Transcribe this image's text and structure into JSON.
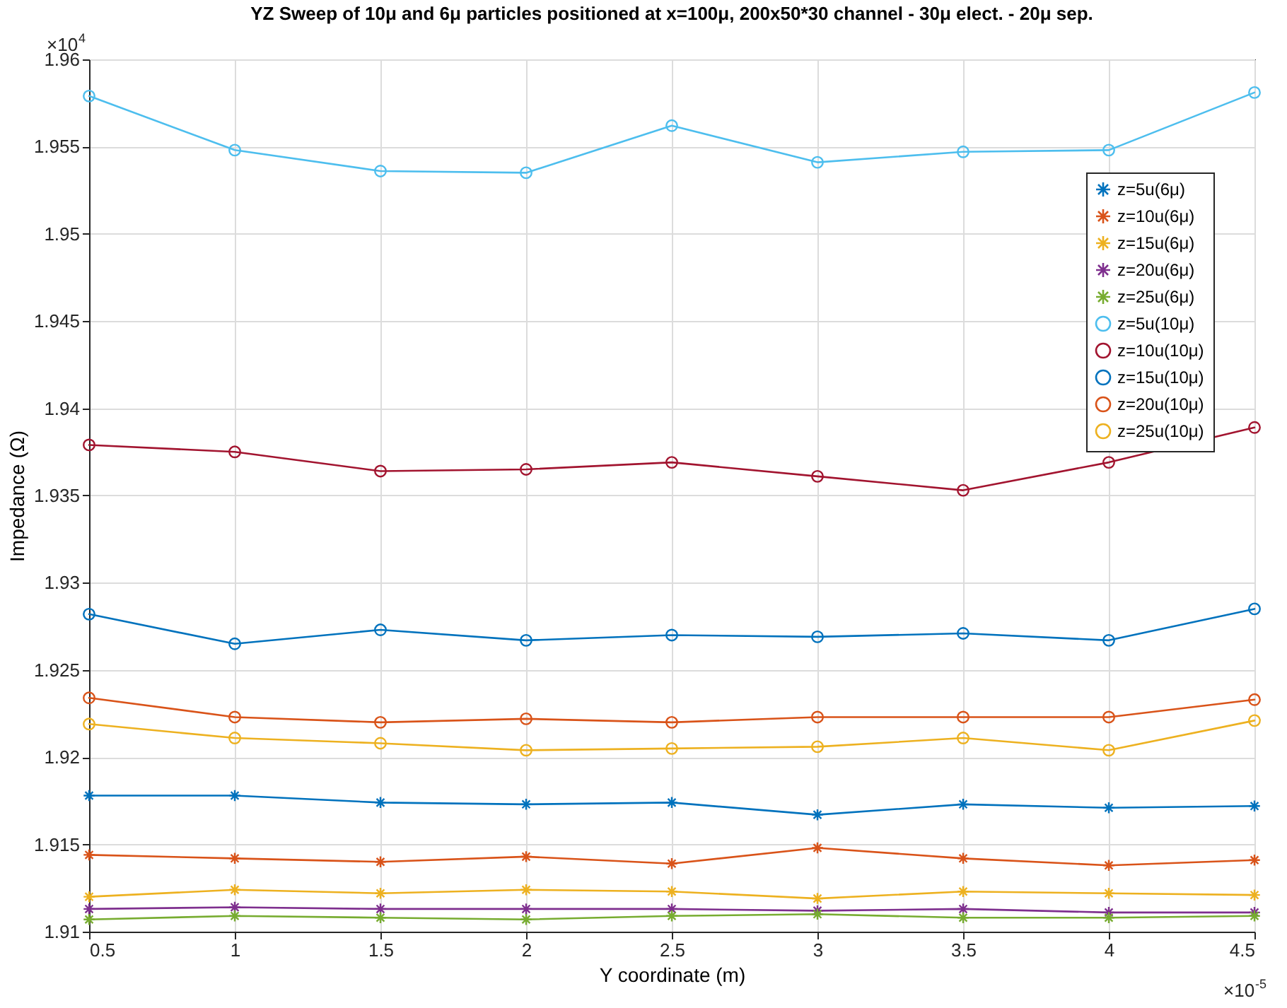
{
  "chart_data": {
    "type": "line",
    "title": "YZ Sweep of 10μ and 6μ particles positioned at x=100μ, 200x50*30 channel - 30μ elect. - 20μ sep.",
    "xlabel": "Y coordinate (m)",
    "ylabel": "Impedance (Ω)",
    "annotations": [
      "×10$^{4}$",
      "×10$^{-5}$"
    ],
    "x": [
      0.5,
      1,
      1.5,
      2,
      2.5,
      3,
      3.5,
      4,
      4.5
    ],
    "xlim": [
      0.5,
      4.5
    ],
    "xticks": [
      0.5,
      1,
      1.5,
      2,
      2.5,
      3,
      3.5,
      4,
      4.5
    ],
    "ylim": [
      1.91,
      1.96
    ],
    "yticks": [
      1.91,
      1.915,
      1.92,
      1.925,
      1.93,
      1.935,
      1.94,
      1.945,
      1.95,
      1.955,
      1.96
    ],
    "grid": true,
    "legend": "top right",
    "series": [
      {
        "name": "z=5u(6μ)",
        "color": "#0072bd",
        "marker": "cross",
        "values": [
          1.9178,
          1.9178,
          1.9174,
          1.9173,
          1.9174,
          1.9167,
          1.9173,
          1.9171,
          1.9172
        ]
      },
      {
        "name": "z=10u(6μ)",
        "color": "#d95319",
        "marker": "cross",
        "values": [
          1.9144,
          1.9142,
          1.914,
          1.9143,
          1.9139,
          1.9148,
          1.9142,
          1.9138,
          1.9141
        ]
      },
      {
        "name": "z=15u(6μ)",
        "color": "#edb120",
        "marker": "cross",
        "values": [
          1.912,
          1.9124,
          1.9122,
          1.9124,
          1.9123,
          1.9119,
          1.9123,
          1.9122,
          1.9121
        ]
      },
      {
        "name": "z=20u(6μ)",
        "color": "#7e2f8e",
        "marker": "cross",
        "values": [
          1.9113,
          1.9114,
          1.9113,
          1.9113,
          1.9113,
          1.9112,
          1.9113,
          1.9111,
          1.9111
        ]
      },
      {
        "name": "z=25u(6μ)",
        "color": "#77ac30",
        "marker": "cross",
        "values": [
          1.9107,
          1.9109,
          1.9108,
          1.9107,
          1.9109,
          1.911,
          1.9108,
          1.9108,
          1.9109
        ]
      },
      {
        "name": "z=5u(10μ)",
        "color": "#4dbeee",
        "marker": "circle",
        "values": [
          1.9579,
          1.9548,
          1.9536,
          1.9535,
          1.9562,
          1.9541,
          1.9547,
          1.9548,
          1.9581
        ]
      },
      {
        "name": "z=10u(10μ)",
        "color": "#a2142f",
        "marker": "circle",
        "values": [
          1.9379,
          1.9375,
          1.9364,
          1.9365,
          1.9369,
          1.9361,
          1.9353,
          1.9369,
          1.9389
        ]
      },
      {
        "name": "z=15u(10μ)",
        "color": "#0072bd",
        "marker": "circle",
        "values": [
          1.9282,
          1.9265,
          1.9273,
          1.9267,
          1.927,
          1.9269,
          1.9271,
          1.9267,
          1.9285
        ]
      },
      {
        "name": "z=20u(10μ)",
        "color": "#d95319",
        "marker": "circle",
        "values": [
          1.9234,
          1.9223,
          1.922,
          1.9222,
          1.922,
          1.9223,
          1.9223,
          1.9223,
          1.9233
        ]
      },
      {
        "name": "z=25u(10μ)",
        "color": "#edb120",
        "marker": "circle",
        "values": [
          1.9219,
          1.9211,
          1.9208,
          1.9204,
          1.9205,
          1.9206,
          1.9211,
          1.9204,
          1.9221
        ]
      }
    ]
  }
}
